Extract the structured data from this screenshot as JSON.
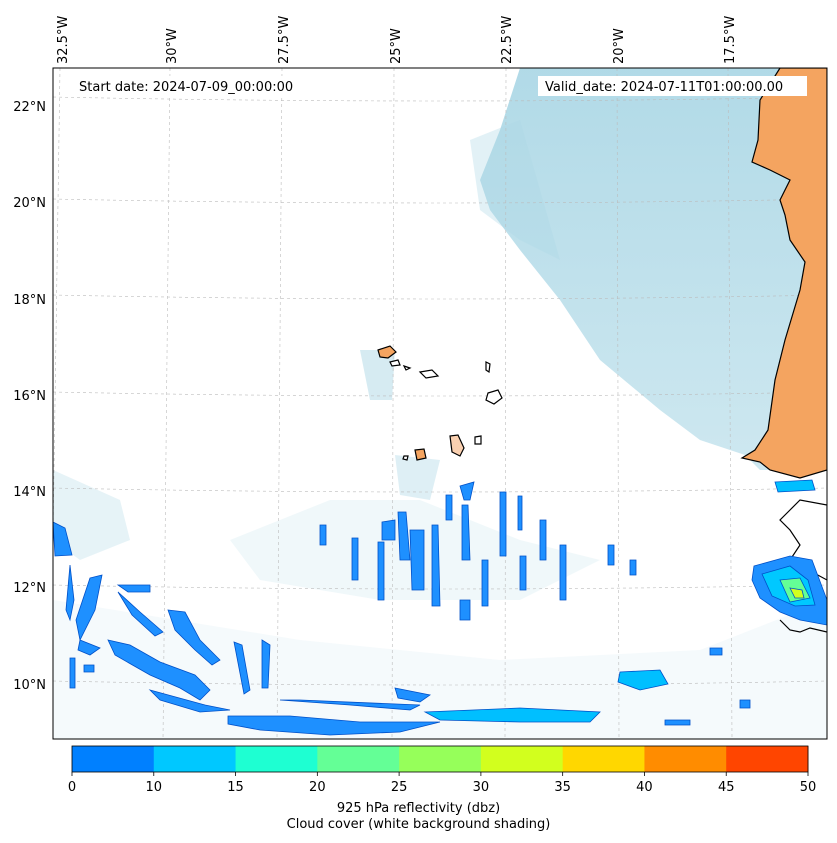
{
  "header": {
    "start_date": "Start date: 2024-07-09_00:00:00",
    "valid_date": "Valid_date: 2024-07-11T01:00:00.00"
  },
  "map": {
    "lon_labels": [
      "32.5°W",
      "30°W",
      "27.5°W",
      "25°W",
      "22.5°W",
      "20°W",
      "17.5°W"
    ],
    "lat_labels": [
      "22°N",
      "20°N",
      "18°N",
      "16°N",
      "14°N",
      "12°N",
      "10°N"
    ],
    "region": "Cabo Verde and West African coast"
  },
  "colorbar": {
    "ticks": [
      "0",
      "10",
      "15",
      "20",
      "25",
      "30",
      "35",
      "40",
      "45",
      "50"
    ],
    "colors": [
      "#0080ff",
      "#00c8ff",
      "#1effd2",
      "#64ff96",
      "#96ff5a",
      "#d2ff1e",
      "#ffd700",
      "#ff8c00",
      "#ff4500"
    ],
    "label": "925 hPa reflectivity (dbz)",
    "sublabel": "Cloud cover (white background shading)"
  },
  "style": {
    "land": "#f4a460",
    "cloud": "#add8e6",
    "echo": "#1e90ff"
  }
}
